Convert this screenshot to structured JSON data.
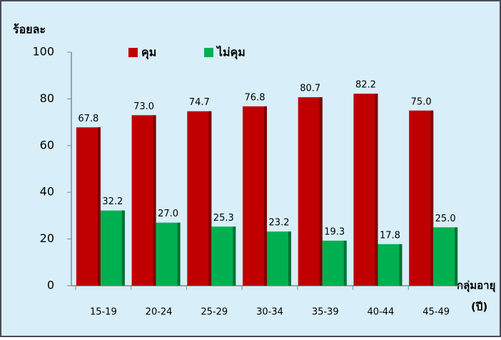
{
  "chart_data": {
    "type": "bar",
    "ylabel": "ร้อยละ",
    "xlabel": [
      "กลุ่มอายุ",
      "(ปี)"
    ],
    "categories": [
      "15-19",
      "20-24",
      "25-29",
      "30-34",
      "35-39",
      "40-44",
      "45-49"
    ],
    "series": [
      {
        "name": "คุม",
        "color": "#c00000",
        "values": [
          67.8,
          73.0,
          74.7,
          76.8,
          80.7,
          82.2,
          75.0
        ],
        "value_labels": [
          "67.8",
          "73.0",
          "74.7",
          "76.8",
          "80.7",
          "82.2",
          "75.0"
        ]
      },
      {
        "name": "ไม่คุม",
        "color": "#00b050",
        "values": [
          32.2,
          27.0,
          25.3,
          23.2,
          19.3,
          17.8,
          25.0
        ],
        "value_labels": [
          "32.2",
          "27.0",
          "25.3",
          "23.2",
          "19.3",
          "17.8",
          "25.0"
        ]
      }
    ],
    "ylim": [
      0,
      100
    ],
    "yticks": [
      0,
      20,
      40,
      60,
      80,
      100
    ],
    "grid": false
  }
}
